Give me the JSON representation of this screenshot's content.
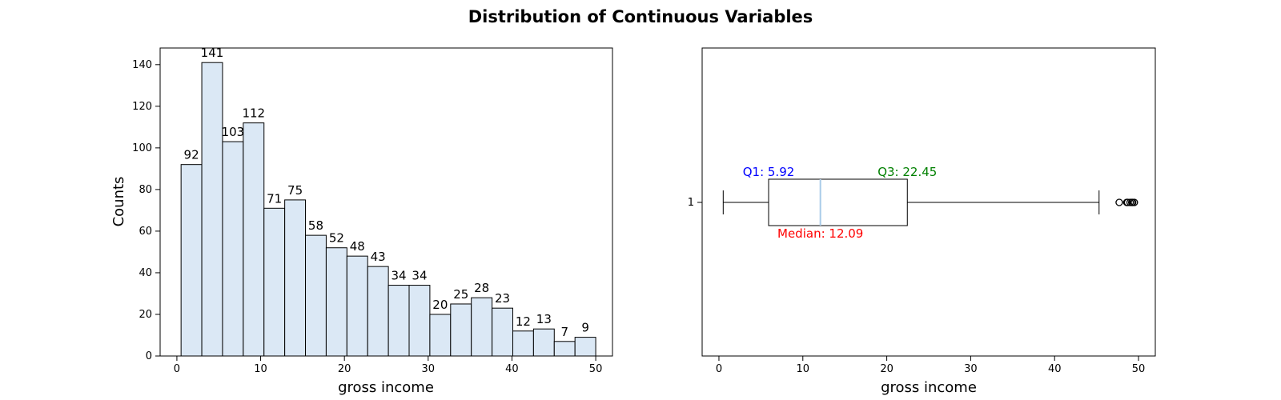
{
  "figure": {
    "title": "Distribution of Continuous Variables"
  },
  "chart_data": [
    {
      "type": "bar",
      "subtype": "histogram",
      "xlabel": "gross income",
      "ylabel": "Counts",
      "bin_start": 0.5,
      "bin_width": 2.475,
      "values": [
        92,
        141,
        103,
        112,
        71,
        75,
        58,
        52,
        48,
        43,
        34,
        34,
        20,
        25,
        28,
        23,
        12,
        13,
        7,
        9
      ],
      "xlim": [
        -2,
        52
      ],
      "ylim": [
        0,
        148
      ],
      "xticks": [
        0,
        10,
        20,
        30,
        40,
        50
      ],
      "yticks": [
        0,
        20,
        40,
        60,
        80,
        100,
        120,
        140
      ],
      "bar_color": "#dbe8f5",
      "edge_color": "#000000",
      "grid": false
    },
    {
      "type": "boxplot",
      "orientation": "horizontal",
      "xlabel": "gross income",
      "ytick_label": "1",
      "xlim": [
        -2,
        52
      ],
      "xticks": [
        0,
        10,
        20,
        30,
        40,
        50
      ],
      "whisker_low": 0.51,
      "q1": 5.92,
      "median": 12.09,
      "q3": 22.45,
      "whisker_high": 45.3,
      "outliers": [
        47.7,
        48.6,
        48.7,
        49.0,
        49.2,
        49.3,
        49.5
      ],
      "annotations": {
        "q1": "Q1: 5.92",
        "median": "Median: 12.09",
        "q3": "Q3: 22.45"
      },
      "colors": {
        "q1": "#0000ff",
        "median": "#ff0000",
        "q3": "#008000",
        "median_line": "#a9cbe8"
      }
    }
  ]
}
